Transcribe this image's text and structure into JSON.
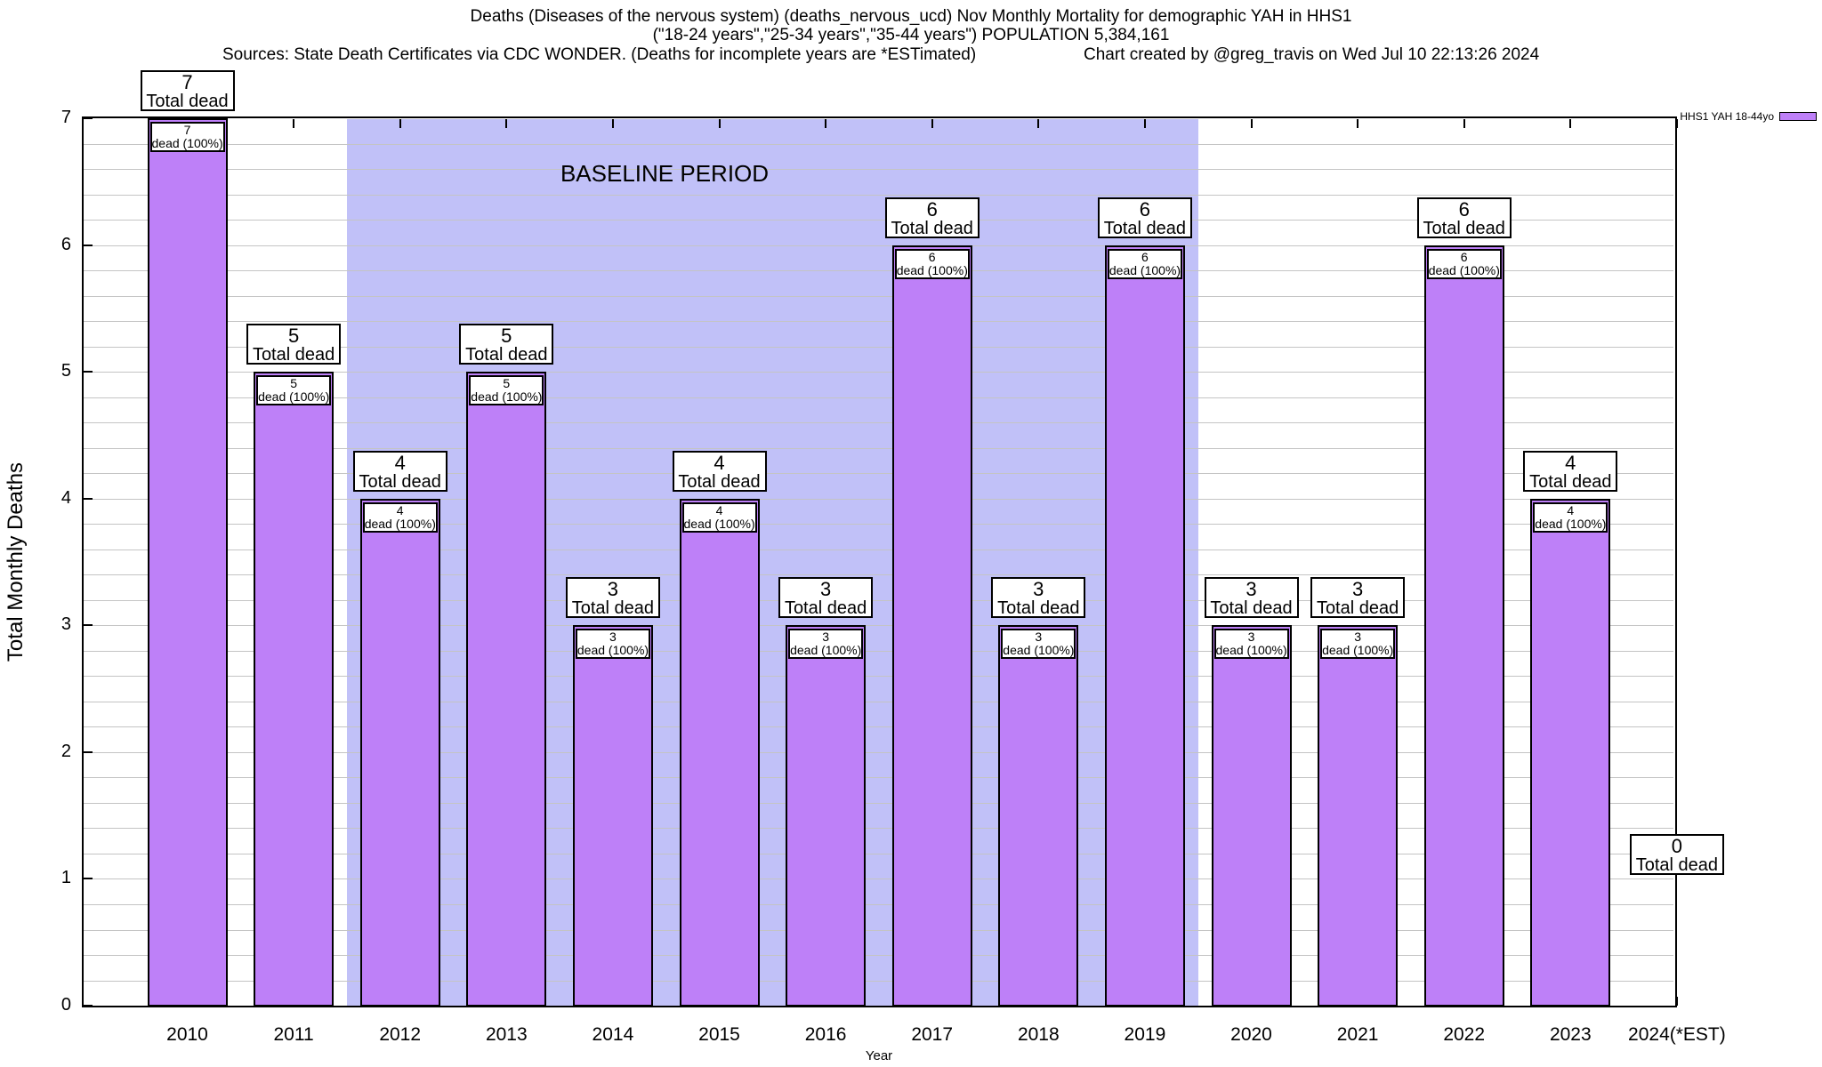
{
  "header": {
    "title_line1": "Deaths (Diseases of the nervous system) (deaths_nervous_ucd) Nov Monthly Mortality for demographic YAH in HHS1",
    "title_line2": "(\"18-24 years\",\"25-34 years\",\"35-44 years\") POPULATION 5,384,161",
    "sources_line": "Sources: State Death Certificates via CDC WONDER. (Deaths for incomplete years are *ESTimated)",
    "credit_line": "Chart created by @greg_travis on Wed Jul 10 22:13:26 2024"
  },
  "legend": {
    "label": "HHS1 YAH 18-44yo",
    "swatch_color": "#BE80F8"
  },
  "chart_data": {
    "type": "bar",
    "title": "Deaths (Diseases of the nervous system) (deaths_nervous_ucd) Nov Monthly Mortality for demographic YAH in HHS1",
    "categories": [
      "2010",
      "2011",
      "2012",
      "2013",
      "2014",
      "2015",
      "2016",
      "2017",
      "2018",
      "2019",
      "2020",
      "2021",
      "2022",
      "2023",
      "2024(*EST)"
    ],
    "values": [
      7,
      5,
      4,
      5,
      3,
      4,
      3,
      6,
      3,
      6,
      3,
      3,
      6,
      4,
      0
    ],
    "series_name": "HHS1 YAH 18-44yo",
    "xlabel": "Year",
    "ylabel": "Total Monthly Deaths",
    "ylim": [
      0,
      7
    ],
    "y_ticks": [
      "0",
      "1",
      "2",
      "3",
      "4",
      "5",
      "6",
      "7"
    ],
    "minor_grid_step": 0.2,
    "grid": true,
    "legend_position": "top-right-outside",
    "bar_color": "#BE80F8",
    "bar_border_color": "#000000",
    "grid_color": "#C4C4C4",
    "annotations": {
      "above_box_line2": "Total dead",
      "inner_box_line2": "dead (100%)"
    },
    "baseline_region": {
      "label": "BASELINE PERIOD",
      "start_category": "2012",
      "end_category": "2019",
      "color": "#C1C1F8"
    }
  }
}
